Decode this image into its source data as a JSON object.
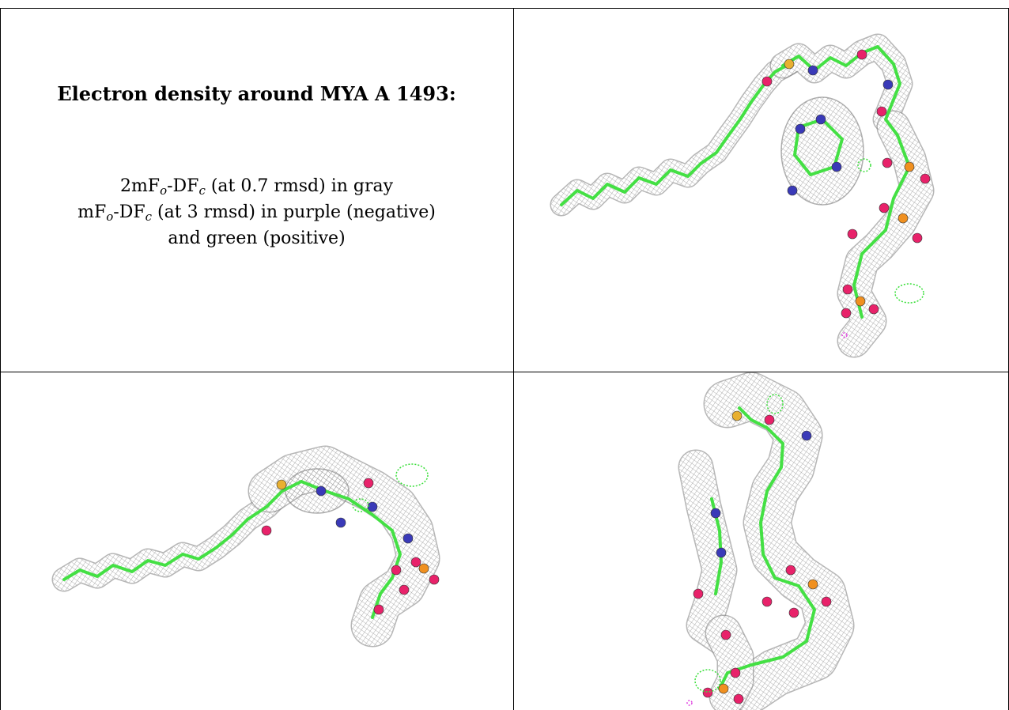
{
  "caption": {
    "title": "Electron density around MYA A 1493:",
    "line1": {
      "pre": "2mF",
      "sub1": "o",
      "mid": "-DF",
      "sub2": "c",
      "post": " (at 0.7 rmsd) in gray"
    },
    "line2": {
      "pre": "mF",
      "sub1": "o",
      "mid": "-DF",
      "sub2": "c",
      "post": " (at 3 rmsd) in purple (negative)"
    },
    "line3": "and green (positive)"
  },
  "colors": {
    "mesh": "#9a9a9a",
    "bond": "#44e044",
    "oxygen": "#e8226a",
    "nitrogen": "#3a3ab8",
    "sulfur": "#e8b030",
    "phosphorus": "#f09020",
    "positive": "#3adf3a",
    "negative": "#e040e0"
  },
  "panels": [
    {
      "view": "view-1-right-top"
    },
    {
      "view": "view-2-left-bottom"
    },
    {
      "view": "view-3-right-bottom"
    }
  ]
}
